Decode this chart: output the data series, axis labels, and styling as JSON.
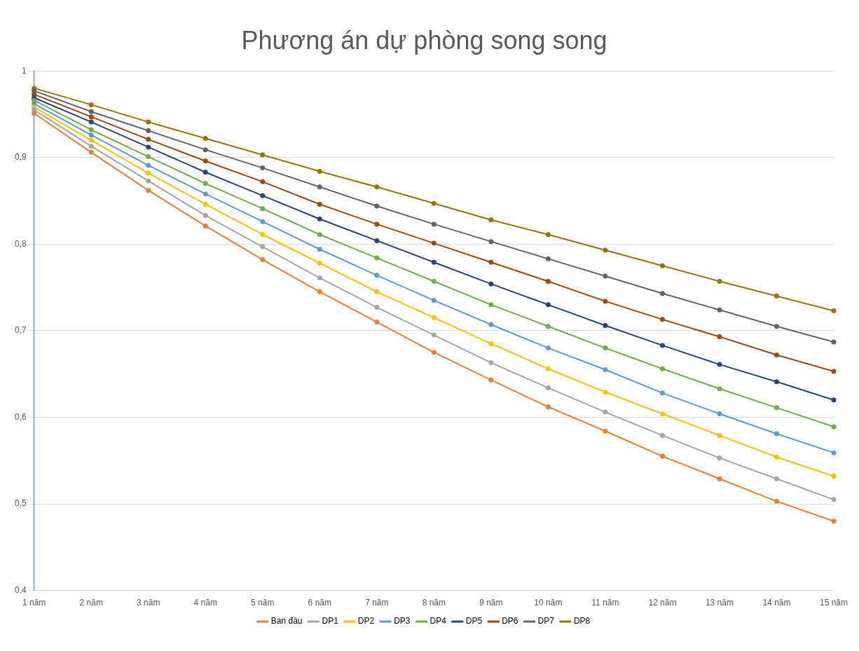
{
  "chart_data": {
    "type": "line",
    "title": "Phương án dự phòng song song",
    "categories": [
      "1 năm",
      "2 năm",
      "3 năm",
      "4 năm",
      "5 năm",
      "6 năm",
      "7 năm",
      "8 năm",
      "9 năm",
      "10 năm",
      "11 năm",
      "12 năm",
      "13 năm",
      "14 năm",
      "15 năm"
    ],
    "series": [
      {
        "name": "Ban đầu",
        "color": "#ed7d31",
        "values": [
          0.951,
          0.906,
          0.862,
          0.821,
          0.782,
          0.745,
          0.71,
          0.675,
          0.643,
          0.612,
          0.584,
          0.555,
          0.529,
          0.503,
          0.48
        ]
      },
      {
        "name": "DP1",
        "color": "#a5a5a5",
        "values": [
          0.955,
          0.913,
          0.873,
          0.833,
          0.797,
          0.761,
          0.727,
          0.695,
          0.663,
          0.634,
          0.606,
          0.579,
          0.553,
          0.529,
          0.505
        ]
      },
      {
        "name": "DP2",
        "color": "#ffc000",
        "values": [
          0.958,
          0.92,
          0.882,
          0.846,
          0.811,
          0.778,
          0.745,
          0.715,
          0.685,
          0.656,
          0.629,
          0.604,
          0.579,
          0.554,
          0.532
        ]
      },
      {
        "name": "DP3",
        "color": "#5b9bd5",
        "values": [
          0.962,
          0.926,
          0.891,
          0.858,
          0.826,
          0.794,
          0.764,
          0.735,
          0.707,
          0.68,
          0.655,
          0.628,
          0.604,
          0.581,
          0.559
        ]
      },
      {
        "name": "DP4",
        "color": "#70ad47",
        "values": [
          0.966,
          0.932,
          0.901,
          0.87,
          0.841,
          0.811,
          0.784,
          0.757,
          0.73,
          0.705,
          0.68,
          0.656,
          0.633,
          0.611,
          0.589
        ]
      },
      {
        "name": "DP5",
        "color": "#264478",
        "values": [
          0.969,
          0.941,
          0.912,
          0.883,
          0.856,
          0.829,
          0.804,
          0.779,
          0.754,
          0.73,
          0.706,
          0.683,
          0.661,
          0.641,
          0.62
        ]
      },
      {
        "name": "DP6",
        "color": "#9e480e",
        "values": [
          0.973,
          0.947,
          0.921,
          0.896,
          0.872,
          0.846,
          0.823,
          0.801,
          0.779,
          0.757,
          0.734,
          0.713,
          0.693,
          0.672,
          0.653
        ]
      },
      {
        "name": "DP7",
        "color": "#636363",
        "values": [
          0.977,
          0.953,
          0.931,
          0.909,
          0.888,
          0.866,
          0.844,
          0.823,
          0.803,
          0.783,
          0.763,
          0.743,
          0.724,
          0.705,
          0.687
        ]
      },
      {
        "name": "DP8",
        "color": "#997300",
        "values": [
          0.98,
          0.961,
          0.941,
          0.922,
          0.903,
          0.884,
          0.866,
          0.847,
          0.828,
          0.811,
          0.793,
          0.775,
          0.757,
          0.74,
          0.723
        ]
      }
    ],
    "ylim": [
      0.4,
      1
    ],
    "yticks": [
      {
        "value": 0.4,
        "label": "0,4"
      },
      {
        "value": 0.5,
        "label": "0,5"
      },
      {
        "value": 0.6,
        "label": "0,6"
      },
      {
        "value": 0.7,
        "label": "0,7"
      },
      {
        "value": 0.8,
        "label": "0,8"
      },
      {
        "value": 0.9,
        "label": "0,9"
      },
      1
    ],
    "grid": "y",
    "legend": "bottom",
    "marker": "circle",
    "line_style": "solid"
  }
}
